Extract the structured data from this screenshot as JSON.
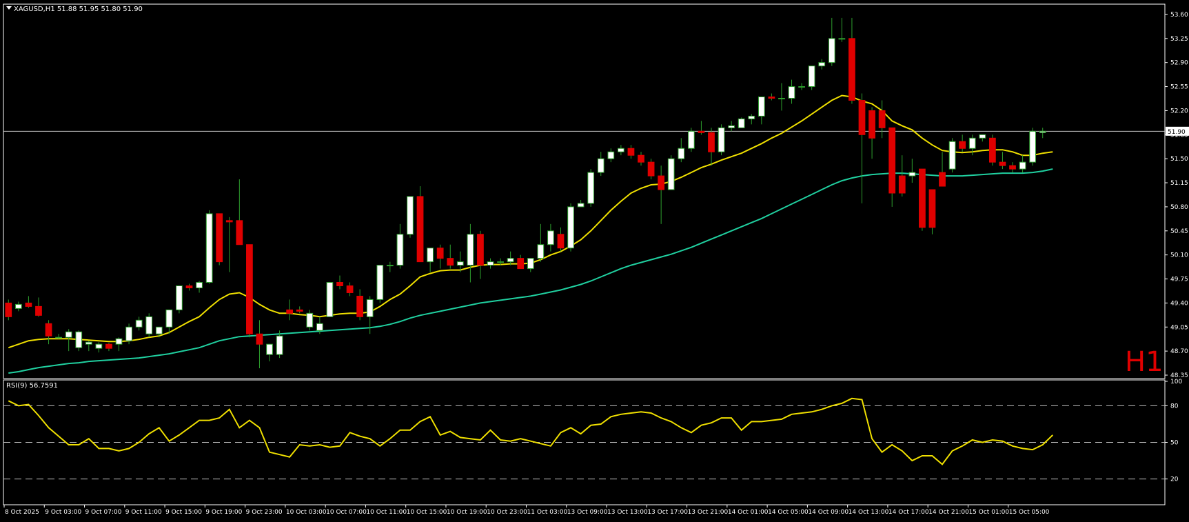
{
  "colors": {
    "background": "#000000",
    "frame": "#ffffff",
    "bull_fill": "#ffffff",
    "bear_fill": "#e00000",
    "wick": "#2ea02e",
    "ma_fast": "#f0e000",
    "ma_slow": "#20d0a0",
    "rsi_line": "#f0e000",
    "level_line": "#c0c0c0",
    "price_line": "#c8c8c8",
    "timeframe_label": "#e00000"
  },
  "header": {
    "symbol_info": "XAGUSD,H1  51.88 51.95 51.80 51.90",
    "rsi_info": "RSI(9) 56.7591",
    "timeframe_label": "H1",
    "current_price_label": "51.90"
  },
  "chart_data": [
    {
      "type": "candlestick",
      "symbol": "XAGUSD",
      "timeframe": "H1",
      "ylim": [
        48.3,
        53.75
      ],
      "y_ticks": [
        "53.60",
        "53.25",
        "52.90",
        "52.55",
        "52.20",
        "51.85",
        "51.50",
        "51.15",
        "50.80",
        "50.45",
        "50.10",
        "49.75",
        "49.40",
        "49.05",
        "48.70",
        "48.35"
      ],
      "current_price": 51.9,
      "ohlc": [
        [
          49.4,
          49.45,
          49.15,
          49.2
        ],
        [
          49.32,
          49.42,
          49.28,
          49.38
        ],
        [
          49.4,
          49.5,
          49.33,
          49.35
        ],
        [
          49.35,
          49.48,
          49.2,
          49.22
        ],
        [
          49.1,
          49.15,
          48.8,
          48.92
        ],
        [
          48.9,
          48.95,
          48.88,
          48.9
        ],
        [
          48.9,
          49.02,
          48.7,
          48.98
        ],
        [
          48.75,
          49.0,
          48.7,
          48.98
        ],
        [
          48.8,
          48.85,
          48.7,
          48.83
        ],
        [
          48.74,
          48.83,
          48.68,
          48.8
        ],
        [
          48.8,
          48.82,
          48.7,
          48.74
        ],
        [
          48.8,
          48.9,
          48.7,
          48.88
        ],
        [
          48.85,
          49.1,
          48.8,
          49.05
        ],
        [
          49.05,
          49.2,
          49.0,
          49.15
        ],
        [
          48.95,
          49.25,
          48.9,
          49.2
        ],
        [
          48.95,
          49.05,
          48.9,
          49.05
        ],
        [
          49.05,
          49.3,
          48.95,
          49.3
        ],
        [
          49.3,
          49.65,
          49.25,
          49.65
        ],
        [
          49.65,
          49.68,
          49.58,
          49.62
        ],
        [
          49.62,
          49.72,
          49.55,
          49.7
        ],
        [
          49.7,
          50.75,
          49.68,
          50.7
        ],
        [
          50.7,
          50.65,
          49.95,
          50.0
        ],
        [
          50.6,
          50.65,
          49.85,
          50.58
        ],
        [
          50.6,
          51.2,
          50.25,
          50.25
        ],
        [
          50.25,
          50.25,
          48.9,
          48.95
        ],
        [
          48.95,
          49.15,
          48.45,
          48.8
        ],
        [
          48.65,
          48.8,
          48.55,
          48.8
        ],
        [
          48.65,
          49.0,
          48.6,
          48.92
        ],
        [
          49.3,
          49.45,
          49.15,
          49.25
        ],
        [
          49.3,
          49.35,
          49.25,
          49.28
        ],
        [
          49.05,
          49.3,
          49.0,
          49.25
        ],
        [
          49.0,
          49.2,
          48.95,
          49.1
        ],
        [
          49.2,
          49.7,
          49.2,
          49.7
        ],
        [
          49.7,
          49.8,
          49.6,
          49.65
        ],
        [
          49.65,
          49.7,
          49.5,
          49.55
        ],
        [
          49.5,
          49.6,
          49.15,
          49.2
        ],
        [
          49.2,
          49.5,
          48.95,
          49.45
        ],
        [
          49.45,
          49.95,
          49.4,
          49.95
        ],
        [
          49.95,
          50.0,
          49.85,
          49.95
        ],
        [
          49.95,
          50.55,
          49.9,
          50.4
        ],
        [
          50.4,
          50.95,
          50.35,
          50.95
        ],
        [
          50.95,
          51.1,
          50.0,
          50.0
        ],
        [
          50.0,
          50.15,
          49.85,
          50.2
        ],
        [
          50.2,
          50.25,
          49.9,
          50.05
        ],
        [
          50.05,
          50.25,
          49.9,
          49.95
        ],
        [
          49.95,
          50.15,
          49.85,
          50.0
        ],
        [
          49.95,
          50.55,
          49.7,
          50.4
        ],
        [
          50.4,
          50.45,
          49.75,
          49.95
        ],
        [
          49.95,
          50.05,
          49.9,
          50.0
        ],
        [
          50.0,
          50.05,
          49.95,
          50.0
        ],
        [
          50.0,
          50.15,
          49.95,
          50.05
        ],
        [
          50.05,
          50.1,
          49.9,
          49.9
        ],
        [
          49.9,
          50.05,
          49.85,
          50.05
        ],
        [
          50.05,
          50.55,
          50.0,
          50.25
        ],
        [
          50.25,
          50.55,
          50.15,
          50.45
        ],
        [
          50.4,
          50.5,
          50.15,
          50.2
        ],
        [
          50.2,
          50.85,
          50.15,
          50.8
        ],
        [
          50.8,
          50.9,
          50.8,
          50.85
        ],
        [
          50.85,
          51.35,
          50.8,
          51.3
        ],
        [
          51.3,
          51.6,
          51.25,
          51.5
        ],
        [
          51.5,
          51.65,
          51.45,
          51.6
        ],
        [
          51.6,
          51.7,
          51.55,
          51.65
        ],
        [
          51.65,
          51.7,
          51.5,
          51.55
        ],
        [
          51.55,
          51.6,
          51.4,
          51.45
        ],
        [
          51.45,
          51.5,
          51.2,
          51.25
        ],
        [
          51.25,
          51.4,
          50.55,
          51.05
        ],
        [
          51.05,
          51.55,
          51.05,
          51.5
        ],
        [
          51.5,
          51.8,
          51.45,
          51.65
        ],
        [
          51.65,
          51.95,
          51.6,
          51.9
        ],
        [
          51.9,
          52.05,
          51.85,
          51.88
        ],
        [
          51.88,
          51.95,
          51.4,
          51.6
        ],
        [
          51.6,
          52.0,
          51.55,
          51.95
        ],
        [
          51.95,
          52.05,
          51.9,
          51.98
        ],
        [
          51.95,
          52.1,
          51.95,
          52.08
        ],
        [
          52.08,
          52.15,
          52.0,
          52.12
        ],
        [
          52.12,
          52.4,
          52.0,
          52.4
        ],
        [
          52.4,
          52.45,
          52.35,
          52.38
        ],
        [
          52.38,
          52.6,
          52.2,
          52.38
        ],
        [
          52.38,
          52.65,
          52.3,
          52.55
        ],
        [
          52.55,
          52.6,
          52.5,
          52.55
        ],
        [
          52.55,
          52.85,
          52.5,
          52.85
        ],
        [
          52.85,
          52.95,
          52.8,
          52.9
        ],
        [
          52.9,
          53.55,
          52.85,
          53.25
        ],
        [
          53.25,
          53.55,
          53.2,
          53.25
        ],
        [
          53.25,
          53.55,
          52.3,
          52.35
        ],
        [
          52.35,
          52.45,
          50.85,
          51.85
        ],
        [
          52.2,
          52.25,
          51.5,
          51.8
        ],
        [
          52.2,
          52.35,
          51.8,
          51.95
        ],
        [
          51.95,
          51.95,
          50.8,
          51.0
        ],
        [
          51.25,
          51.55,
          50.95,
          51.0
        ],
        [
          51.25,
          51.5,
          51.15,
          51.3
        ],
        [
          51.35,
          51.35,
          50.45,
          50.5
        ],
        [
          51.05,
          51.05,
          50.4,
          50.5
        ],
        [
          51.3,
          51.6,
          51.1,
          51.1
        ],
        [
          51.35,
          51.8,
          51.3,
          51.75
        ],
        [
          51.75,
          51.85,
          51.6,
          51.65
        ],
        [
          51.65,
          51.85,
          51.55,
          51.8
        ],
        [
          51.8,
          51.85,
          51.75,
          51.85
        ],
        [
          51.8,
          51.85,
          51.4,
          51.45
        ],
        [
          51.45,
          51.6,
          51.35,
          51.4
        ],
        [
          51.4,
          51.45,
          51.3,
          51.35
        ],
        [
          51.35,
          51.55,
          51.3,
          51.45
        ],
        [
          51.45,
          51.95,
          51.4,
          51.9
        ],
        [
          51.88,
          51.95,
          51.8,
          51.9
        ]
      ],
      "ma_fast": [
        48.75,
        48.8,
        48.85,
        48.87,
        48.88,
        48.88,
        48.88,
        48.87,
        48.86,
        48.85,
        48.84,
        48.84,
        48.85,
        48.87,
        48.9,
        48.92,
        48.97,
        49.05,
        49.13,
        49.2,
        49.33,
        49.45,
        49.53,
        49.55,
        49.48,
        49.38,
        49.3,
        49.25,
        49.25,
        49.23,
        49.22,
        49.2,
        49.22,
        49.24,
        49.25,
        49.25,
        49.27,
        49.35,
        49.45,
        49.53,
        49.65,
        49.78,
        49.83,
        49.87,
        49.88,
        49.88,
        49.92,
        49.95,
        49.96,
        49.96,
        49.97,
        49.97,
        49.98,
        50.03,
        50.1,
        50.15,
        50.23,
        50.32,
        50.45,
        50.6,
        50.75,
        50.88,
        51.0,
        51.07,
        51.12,
        51.13,
        51.17,
        51.23,
        51.3,
        51.37,
        51.42,
        51.48,
        51.53,
        51.58,
        51.65,
        51.72,
        51.8,
        51.87,
        51.96,
        52.05,
        52.15,
        52.25,
        52.35,
        52.42,
        52.4,
        52.34,
        52.3,
        52.2,
        52.05,
        51.98,
        51.92,
        51.8,
        51.7,
        51.62,
        51.6,
        51.59,
        51.6,
        51.62,
        51.63,
        51.63,
        51.6,
        51.55,
        51.55,
        51.58,
        51.6
      ],
      "ma_slow": [
        48.38,
        48.4,
        48.43,
        48.46,
        48.48,
        48.5,
        48.52,
        48.53,
        48.55,
        48.56,
        48.57,
        48.58,
        48.59,
        48.6,
        48.62,
        48.64,
        48.66,
        48.69,
        48.72,
        48.75,
        48.8,
        48.85,
        48.88,
        48.91,
        48.92,
        48.93,
        48.94,
        48.95,
        48.96,
        48.97,
        48.98,
        48.99,
        49.0,
        49.01,
        49.02,
        49.03,
        49.04,
        49.06,
        49.09,
        49.13,
        49.18,
        49.22,
        49.25,
        49.28,
        49.31,
        49.34,
        49.37,
        49.4,
        49.42,
        49.44,
        49.46,
        49.48,
        49.5,
        49.53,
        49.56,
        49.59,
        49.63,
        49.67,
        49.72,
        49.78,
        49.84,
        49.9,
        49.95,
        49.99,
        50.03,
        50.07,
        50.11,
        50.16,
        50.21,
        50.27,
        50.33,
        50.39,
        50.45,
        50.51,
        50.57,
        50.63,
        50.7,
        50.77,
        50.84,
        50.91,
        50.98,
        51.05,
        51.12,
        51.18,
        51.22,
        51.25,
        51.27,
        51.28,
        51.29,
        51.29,
        51.28,
        51.27,
        51.26,
        51.25,
        51.25,
        51.25,
        51.26,
        51.27,
        51.28,
        51.29,
        51.29,
        51.29,
        51.3,
        51.32,
        51.35
      ]
    },
    {
      "type": "line",
      "title": "RSI(9) 56.7591",
      "ylim": [
        0,
        100
      ],
      "y_ticks": [
        "100",
        "80",
        "50",
        "20"
      ],
      "levels": [
        80,
        50,
        20
      ],
      "x_labels": [
        "8 Oct 2025",
        "9 Oct 03:00",
        "9 Oct 07:00",
        "9 Oct 11:00",
        "9 Oct 15:00",
        "9 Oct 19:00",
        "9 Oct 23:00",
        "10 Oct 03:00",
        "10 Oct 07:00",
        "10 Oct 11:00",
        "10 Oct 15:00",
        "10 Oct 19:00",
        "10 Oct 23:00",
        "11 Oct 03:00",
        "13 Oct 09:00",
        "13 Oct 13:00",
        "13 Oct 17:00",
        "13 Oct 21:00",
        "14 Oct 01:00",
        "14 Oct 05:00",
        "14 Oct 09:00",
        "14 Oct 13:00",
        "14 Oct 17:00",
        "14 Oct 21:00",
        "15 Oct 01:00",
        "15 Oct 05:00"
      ],
      "values": [
        84,
        80,
        81,
        72,
        62,
        55,
        48,
        48,
        53,
        45,
        45,
        43,
        45,
        50,
        57,
        62,
        51,
        56,
        62,
        68,
        68,
        70,
        77,
        62,
        68,
        62,
        42,
        40,
        38,
        48,
        47,
        48,
        46,
        47,
        58,
        55,
        53,
        47,
        53,
        60,
        60,
        67,
        71,
        56,
        59,
        54,
        53,
        52,
        60,
        52,
        51,
        53,
        51,
        49,
        47,
        58,
        62,
        57,
        64,
        65,
        71,
        73,
        74,
        75,
        74,
        70,
        67,
        62,
        58,
        64,
        66,
        70,
        70,
        60,
        67,
        67,
        68,
        69,
        73,
        74,
        75,
        77,
        80,
        82,
        86,
        85,
        53,
        42,
        48,
        43,
        35,
        39,
        39,
        32,
        43,
        47,
        52,
        50,
        52,
        51,
        47,
        45,
        44,
        48,
        56
      ]
    }
  ]
}
